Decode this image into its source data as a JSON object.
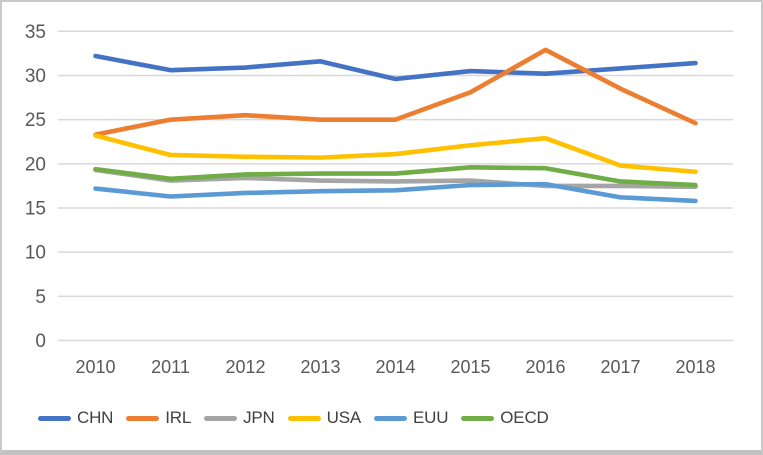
{
  "chart_data": {
    "type": "line",
    "title": "",
    "xlabel": "",
    "ylabel": "",
    "categories": [
      "2010",
      "2011",
      "2012",
      "2013",
      "2014",
      "2015",
      "2016",
      "2017",
      "2018"
    ],
    "series": [
      {
        "name": "CHN",
        "color": "#4472C4",
        "values": [
          32.2,
          30.6,
          30.9,
          31.6,
          29.6,
          30.5,
          30.2,
          30.8,
          31.4
        ]
      },
      {
        "name": "IRL",
        "color": "#ED7D31",
        "values": [
          23.3,
          25.0,
          25.5,
          25.0,
          25.0,
          28.1,
          32.9,
          28.5,
          24.6
        ]
      },
      {
        "name": "JPN",
        "color": "#A5A5A5",
        "values": [
          19.3,
          18.1,
          18.4,
          18.1,
          18.0,
          18.1,
          17.5,
          17.5,
          17.4
        ]
      },
      {
        "name": "USA",
        "color": "#FFC000",
        "values": [
          23.2,
          21.0,
          20.8,
          20.7,
          21.1,
          22.1,
          22.9,
          19.8,
          19.1
        ]
      },
      {
        "name": "EUU",
        "color": "#5B9BD5",
        "values": [
          17.2,
          16.3,
          16.7,
          16.9,
          17.0,
          17.6,
          17.7,
          16.2,
          15.8
        ]
      },
      {
        "name": "OECD",
        "color": "#70AD47",
        "values": [
          19.4,
          18.3,
          18.8,
          18.9,
          18.9,
          19.6,
          19.5,
          18.0,
          17.6
        ]
      }
    ],
    "ylim": [
      0,
      35
    ],
    "yticks": [
      0,
      5,
      10,
      15,
      20,
      25,
      30,
      35
    ],
    "grid": true,
    "gridline_color": "#d9d9d9",
    "tick_label_color": "#595959",
    "legend_position": "bottom",
    "legend_labels": [
      "CHN",
      "IRL",
      "JPN",
      "USA",
      "EUU",
      "OECD"
    ]
  }
}
